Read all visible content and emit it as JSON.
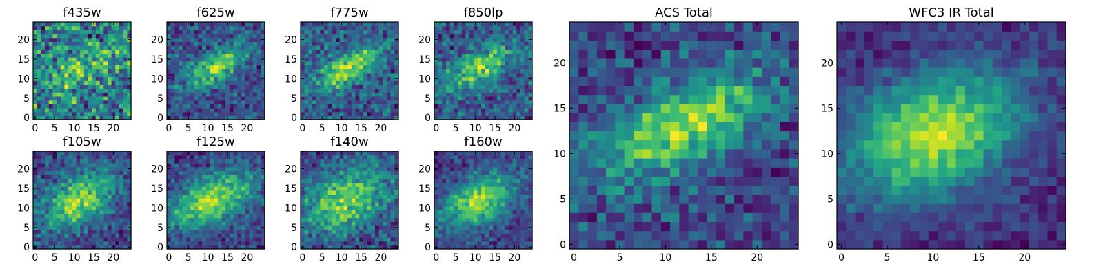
{
  "figure": {
    "description_type": "grid of 2D image panels (pixel maps)",
    "colormap": "viridis"
  },
  "chart_data": [
    {
      "type": "heatmap",
      "title": "f435w",
      "grid_size": 25,
      "xlim": [
        0,
        24
      ],
      "ylim": [
        0,
        24
      ],
      "xticks": [
        "0",
        "5",
        "10",
        "15",
        "20"
      ],
      "yticks": [
        "0",
        "5",
        "10",
        "15",
        "20"
      ],
      "noise": 0.4,
      "blob": {
        "cx": 12,
        "cy": 12,
        "amp": 0.3,
        "sx": 7,
        "sy": 3,
        "angle_deg": 30
      },
      "base": 0.62,
      "seed": 11
    },
    {
      "type": "heatmap",
      "title": "f625w",
      "grid_size": 25,
      "xlim": [
        0,
        24
      ],
      "ylim": [
        0,
        24
      ],
      "xticks": [
        "0",
        "5",
        "10",
        "15",
        "20"
      ],
      "yticks": [
        "0",
        "5",
        "10",
        "15",
        "20"
      ],
      "noise": 0.3,
      "blob": {
        "cx": 12,
        "cy": 13,
        "amp": 0.6,
        "sx": 6,
        "sy": 2.6,
        "angle_deg": 30
      },
      "base": 0.38,
      "seed": 23
    },
    {
      "type": "heatmap",
      "title": "f775w",
      "grid_size": 25,
      "xlim": [
        0,
        24
      ],
      "ylim": [
        0,
        24
      ],
      "xticks": [
        "0",
        "5",
        "10",
        "15",
        "20"
      ],
      "yticks": [
        "0",
        "5",
        "10",
        "15",
        "20"
      ],
      "noise": 0.3,
      "blob": {
        "cx": 12,
        "cy": 13,
        "amp": 0.6,
        "sx": 6,
        "sy": 2.6,
        "angle_deg": 30
      },
      "base": 0.38,
      "seed": 37
    },
    {
      "type": "heatmap",
      "title": "f850lp",
      "grid_size": 25,
      "xlim": [
        0,
        24
      ],
      "ylim": [
        0,
        24
      ],
      "xticks": [
        "0",
        "5",
        "10",
        "15",
        "20"
      ],
      "yticks": [
        "0",
        "5",
        "10",
        "15",
        "20"
      ],
      "noise": 0.32,
      "blob": {
        "cx": 11,
        "cy": 13,
        "amp": 0.55,
        "sx": 6,
        "sy": 2.8,
        "angle_deg": 30
      },
      "base": 0.45,
      "seed": 41
    },
    {
      "type": "heatmap",
      "title": "f105w",
      "grid_size": 25,
      "xlim": [
        0,
        24
      ],
      "ylim": [
        0,
        24
      ],
      "xticks": [
        "0",
        "5",
        "10",
        "15",
        "20"
      ],
      "yticks": [
        "0",
        "5",
        "10",
        "15",
        "20"
      ],
      "noise": 0.25,
      "blob": {
        "cx": 11,
        "cy": 12,
        "amp": 0.6,
        "sx": 7,
        "sy": 4,
        "angle_deg": 30
      },
      "base": 0.4,
      "seed": 53
    },
    {
      "type": "heatmap",
      "title": "f125w",
      "grid_size": 25,
      "xlim": [
        0,
        24
      ],
      "ylim": [
        0,
        24
      ],
      "xticks": [
        "0",
        "5",
        "10",
        "15",
        "20"
      ],
      "yticks": [
        "0",
        "5",
        "10",
        "15",
        "20"
      ],
      "noise": 0.22,
      "blob": {
        "cx": 11,
        "cy": 12,
        "amp": 0.65,
        "sx": 8,
        "sy": 4,
        "angle_deg": 25
      },
      "base": 0.35,
      "seed": 67
    },
    {
      "type": "heatmap",
      "title": "f140w",
      "grid_size": 25,
      "xlim": [
        0,
        24
      ],
      "ylim": [
        0,
        24
      ],
      "xticks": [
        "0",
        "5",
        "10",
        "15",
        "20"
      ],
      "yticks": [
        "0",
        "5",
        "10",
        "15",
        "20"
      ],
      "noise": 0.28,
      "blob": {
        "cx": 11,
        "cy": 12,
        "amp": 0.55,
        "sx": 8,
        "sy": 5,
        "angle_deg": 25
      },
      "base": 0.45,
      "seed": 79
    },
    {
      "type": "heatmap",
      "title": "f160w",
      "grid_size": 25,
      "xlim": [
        0,
        24
      ],
      "ylim": [
        0,
        24
      ],
      "xticks": [
        "0",
        "5",
        "10",
        "15",
        "20"
      ],
      "yticks": [
        "0",
        "5",
        "10",
        "15",
        "20"
      ],
      "noise": 0.22,
      "blob": {
        "cx": 11,
        "cy": 12,
        "amp": 0.65,
        "sx": 7,
        "sy": 4,
        "angle_deg": 30
      },
      "base": 0.3,
      "seed": 83
    },
    {
      "type": "heatmap",
      "title": "ACS Total",
      "grid_size": 25,
      "xlim": [
        0,
        24
      ],
      "ylim": [
        0,
        24
      ],
      "xticks": [
        "0",
        "5",
        "10",
        "15",
        "20"
      ],
      "yticks": [
        "0",
        "5",
        "10",
        "15",
        "20"
      ],
      "noise": 0.22,
      "blob": {
        "cx": 12,
        "cy": 13,
        "amp": 0.55,
        "sx": 7,
        "sy": 3,
        "angle_deg": 25
      },
      "base": 0.42,
      "seed": 97
    },
    {
      "type": "heatmap",
      "title": "WFC3 IR Total",
      "grid_size": 25,
      "xlim": [
        0,
        24
      ],
      "ylim": [
        0,
        24
      ],
      "xticks": [
        "0",
        "5",
        "10",
        "15",
        "20"
      ],
      "yticks": [
        "0",
        "5",
        "10",
        "15",
        "20"
      ],
      "noise": 0.15,
      "blob": {
        "cx": 10,
        "cy": 12,
        "amp": 0.7,
        "sx": 7,
        "sy": 4.5,
        "angle_deg": 25
      },
      "base": 0.25,
      "seed": 101
    }
  ]
}
